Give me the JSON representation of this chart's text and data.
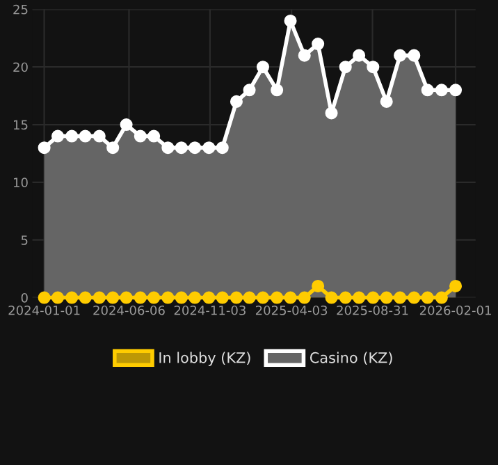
{
  "chart_data": {
    "type": "area",
    "x": [
      "2024-01-01",
      "2024-01-26",
      "2024-02-21",
      "2024-03-17",
      "2024-04-12",
      "2024-05-07",
      "2024-06-01",
      "2024-06-27",
      "2024-07-22",
      "2024-08-17",
      "2024-09-11",
      "2024-10-06",
      "2024-11-01",
      "2024-11-26",
      "2024-12-22",
      "2025-01-15",
      "2025-02-09",
      "2025-03-07",
      "2025-04-01",
      "2025-04-27",
      "2025-05-22",
      "2025-06-16",
      "2025-07-12",
      "2025-08-06",
      "2025-09-01",
      "2025-09-26",
      "2025-10-21",
      "2025-11-16",
      "2025-12-11",
      "2026-01-06",
      "2026-02-01"
    ],
    "series": [
      {
        "name": "In lobby (KZ)",
        "color": "#ffcc00",
        "values": [
          0,
          0,
          0,
          0,
          0,
          0,
          0,
          0,
          0,
          0,
          0,
          0,
          0,
          0,
          0,
          0,
          0,
          0,
          0,
          0,
          1,
          0,
          0,
          0,
          0,
          0,
          0,
          0,
          0,
          0,
          1
        ]
      },
      {
        "name": "Casino (KZ)",
        "color": "#ffffff",
        "values": [
          13,
          14,
          14,
          14,
          14,
          13,
          15,
          14,
          14,
          13,
          13,
          13,
          13,
          13,
          17,
          18,
          20,
          18,
          24,
          21,
          22,
          16,
          20,
          21,
          20,
          17,
          21,
          21,
          18,
          18,
          18
        ]
      }
    ],
    "xlim": [
      "2023-12-10",
      "2026-03-10"
    ],
    "xticks": [
      "2024-01-01",
      "2024-06-06",
      "2024-11-03",
      "2025-04-03",
      "2025-08-31",
      "2026-02-01"
    ],
    "ylim": [
      0,
      25
    ],
    "yticks": [
      0,
      5,
      10,
      15,
      20,
      25
    ],
    "grid": true,
    "legend": "bottom",
    "marker": "circle",
    "line_style": "solid"
  }
}
